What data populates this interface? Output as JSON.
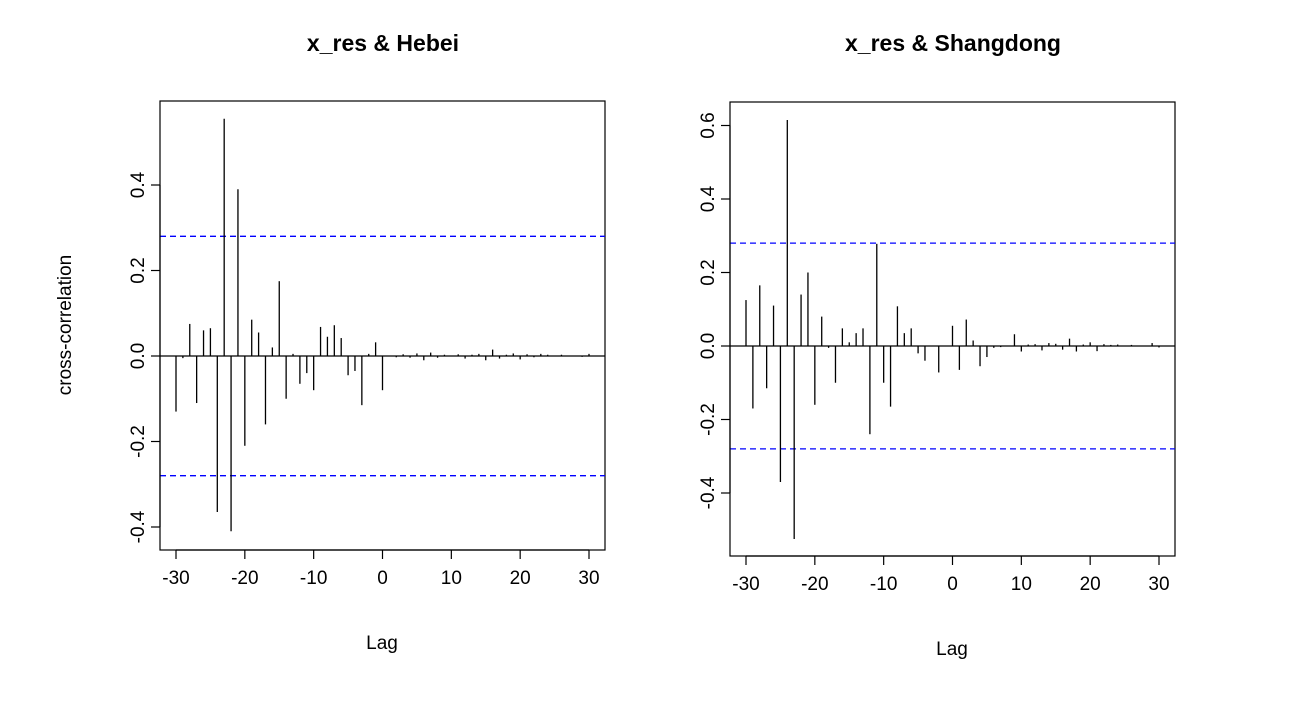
{
  "chart_data": [
    {
      "type": "bar",
      "title": "x_res & Hebei",
      "xlabel": "Lag",
      "ylabel": "cross-correlation",
      "xlim": [
        -32,
        32
      ],
      "ylim": [
        -0.45,
        0.6
      ],
      "xticks": [
        -30,
        -20,
        -10,
        0,
        10,
        20,
        30
      ],
      "xtick_labels": [
        "-30",
        "-20",
        "-10",
        "0",
        "10",
        "20",
        "30"
      ],
      "yticks": [
        -0.4,
        -0.2,
        0.0,
        0.2,
        0.4
      ],
      "ytick_labels": [
        "-0.4",
        "-0.2",
        "0.0",
        "0.2",
        "0.4"
      ],
      "confidence_bounds": [
        0.28,
        -0.28
      ],
      "confidence_color": "#0000ff",
      "grid": false,
      "lags": [
        -30,
        -29,
        -28,
        -27,
        -26,
        -25,
        -24,
        -23,
        -22,
        -21,
        -20,
        -19,
        -18,
        -17,
        -16,
        -15,
        -14,
        -13,
        -12,
        -11,
        -10,
        -9,
        -8,
        -7,
        -6,
        -5,
        -4,
        -3,
        -2,
        -1,
        0,
        1,
        2,
        3,
        4,
        5,
        6,
        7,
        8,
        9,
        10,
        11,
        12,
        13,
        14,
        15,
        16,
        17,
        18,
        19,
        20,
        21,
        22,
        23,
        24,
        25,
        26,
        27,
        28,
        29,
        30
      ],
      "values": [
        -0.13,
        -0.005,
        0.075,
        -0.11,
        0.06,
        0.065,
        -0.365,
        0.555,
        -0.41,
        0.39,
        -0.21,
        0.085,
        0.055,
        -0.16,
        0.02,
        0.175,
        -0.1,
        0.005,
        -0.065,
        -0.04,
        -0.08,
        0.068,
        0.045,
        0.072,
        0.042,
        -0.045,
        -0.035,
        -0.115,
        0.005,
        0.032,
        -0.08,
        0.0,
        -0.003,
        0.004,
        -0.004,
        0.006,
        -0.01,
        0.008,
        -0.004,
        0.003,
        0.0,
        0.004,
        -0.006,
        0.003,
        0.005,
        -0.01,
        0.015,
        -0.006,
        0.003,
        0.006,
        -0.008,
        0.004,
        -0.003,
        0.005,
        0.003,
        0.0,
        0.003,
        0.001,
        0.0,
        -0.002,
        0.005
      ]
    },
    {
      "type": "bar",
      "title": "x_res & Shangdong",
      "xlabel": "Lag",
      "ylabel": "",
      "xlim": [
        -32,
        32
      ],
      "ylim": [
        -0.55,
        0.65
      ],
      "xticks": [
        -30,
        -20,
        -10,
        0,
        10,
        20,
        30
      ],
      "xtick_labels": [
        "-30",
        "-20",
        "-10",
        "0",
        "10",
        "20",
        "30"
      ],
      "yticks": [
        -0.4,
        -0.2,
        0.0,
        0.2,
        0.4,
        0.6
      ],
      "ytick_labels": [
        "-0.4",
        "-0.2",
        "0.0",
        "0.2",
        "0.4",
        "0.6"
      ],
      "confidence_bounds": [
        0.28,
        -0.28
      ],
      "confidence_color": "#0000ff",
      "grid": false,
      "lags": [
        -30,
        -29,
        -28,
        -27,
        -26,
        -25,
        -24,
        -23,
        -22,
        -21,
        -20,
        -19,
        -18,
        -17,
        -16,
        -15,
        -14,
        -13,
        -12,
        -11,
        -10,
        -9,
        -8,
        -7,
        -6,
        -5,
        -4,
        -3,
        -2,
        -1,
        0,
        1,
        2,
        3,
        4,
        5,
        6,
        7,
        8,
        9,
        10,
        11,
        12,
        13,
        14,
        15,
        16,
        17,
        18,
        19,
        20,
        21,
        22,
        23,
        24,
        25,
        26,
        27,
        28,
        29,
        30
      ],
      "values": [
        0.125,
        -0.17,
        0.165,
        -0.115,
        0.11,
        -0.37,
        0.615,
        -0.525,
        0.14,
        0.2,
        -0.16,
        0.08,
        -0.005,
        -0.1,
        0.048,
        0.01,
        0.035,
        0.048,
        -0.24,
        0.278,
        -0.1,
        -0.165,
        0.108,
        0.035,
        0.048,
        -0.02,
        -0.04,
        0.0,
        -0.072,
        0.0,
        0.055,
        -0.065,
        0.072,
        0.015,
        -0.055,
        -0.03,
        -0.005,
        -0.003,
        0.0,
        0.032,
        -0.015,
        0.004,
        0.005,
        -0.012,
        0.008,
        0.006,
        -0.01,
        0.02,
        -0.015,
        0.004,
        0.01,
        -0.014,
        0.005,
        0.003,
        0.004,
        0.0,
        0.003,
        0.001,
        0.0,
        0.008,
        -0.004
      ]
    }
  ]
}
